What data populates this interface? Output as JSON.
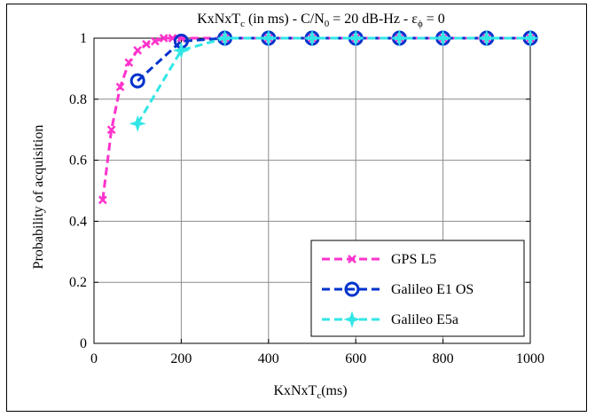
{
  "chart_data": {
    "type": "line",
    "title": {
      "prefix": "KxNxT",
      "prefix_sub": "c",
      "mid": " (in ms) - C/N",
      "mid_sub": "0",
      "suffix": " = 20 dB-Hz - ε",
      "suffix_sub": "ϕ",
      "tail": " = 0"
    },
    "xlabel": {
      "main": "KxNxT",
      "sub": "c",
      "tail": "(ms)"
    },
    "ylabel": "Probability of acquisition",
    "xlim": [
      0,
      1000
    ],
    "ylim": [
      0,
      1
    ],
    "xticks": [
      0,
      200,
      400,
      600,
      800,
      1000
    ],
    "yticks": [
      0,
      0.2,
      0.4,
      0.6,
      0.8,
      1
    ],
    "xtick_labels": [
      "0",
      "200",
      "400",
      "600",
      "800",
      "1000"
    ],
    "ytick_labels": [
      "0",
      "0.2",
      "0.4",
      "0.6",
      "0.8",
      "1"
    ],
    "grid": true,
    "legend_position": "lower-right",
    "series": [
      {
        "name": "GPS L5",
        "color": "#ff33cc",
        "marker": "x",
        "x": [
          20,
          40,
          60,
          80,
          100,
          120,
          140,
          160,
          180,
          200,
          300,
          400,
          500,
          600,
          700,
          800,
          900,
          1000
        ],
        "y": [
          0.47,
          0.7,
          0.84,
          0.92,
          0.96,
          0.98,
          0.99,
          1.0,
          1.0,
          1.0,
          1.0,
          1.0,
          1.0,
          1.0,
          1.0,
          1.0,
          1.0,
          1.0
        ]
      },
      {
        "name": "Galileo E1 OS",
        "color": "#0033cc",
        "marker": "o",
        "x": [
          100,
          200,
          300,
          400,
          500,
          600,
          700,
          800,
          900,
          1000
        ],
        "y": [
          0.86,
          0.99,
          1.0,
          1.0,
          1.0,
          1.0,
          1.0,
          1.0,
          1.0,
          1.0
        ]
      },
      {
        "name": "Galileo E5a",
        "color": "#33e6e6",
        "marker": "star",
        "x": [
          100,
          200,
          300,
          400,
          500,
          600,
          700,
          800,
          900,
          1000
        ],
        "y": [
          0.72,
          0.96,
          1.0,
          1.0,
          1.0,
          1.0,
          1.0,
          1.0,
          1.0,
          1.0
        ]
      }
    ]
  }
}
